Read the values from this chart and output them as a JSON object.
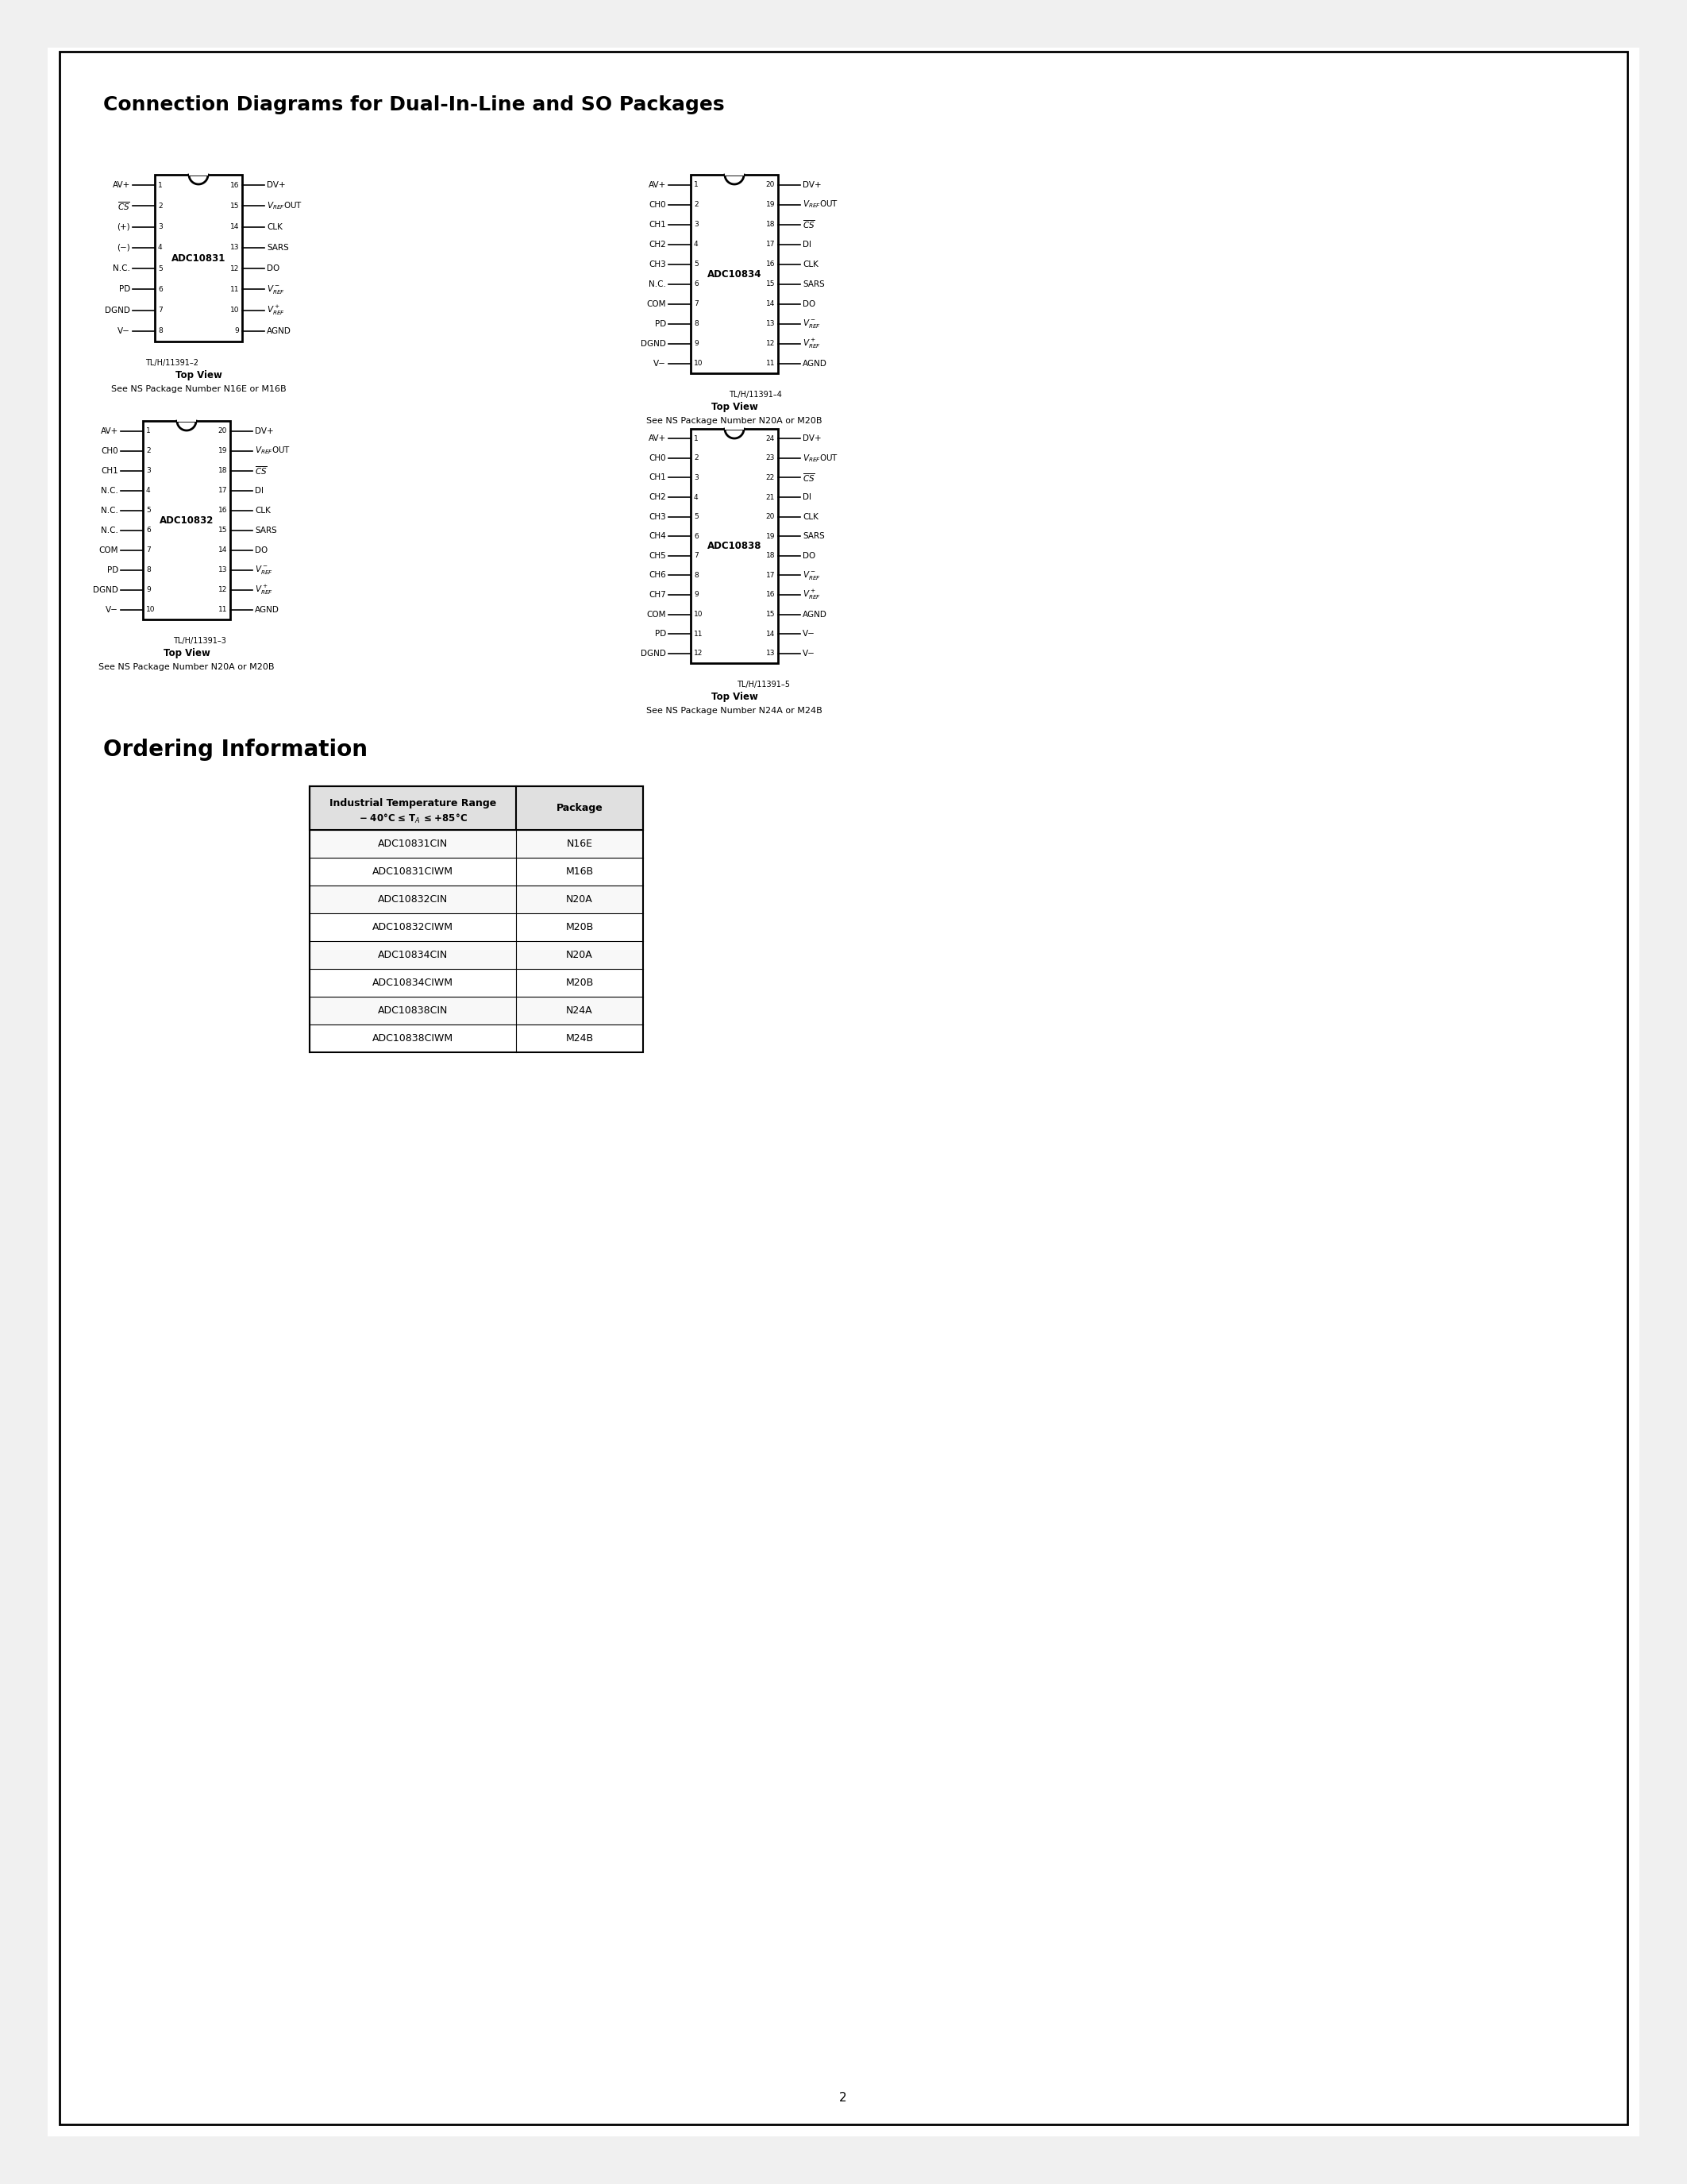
{
  "title": "Connection Diagrams for Dual-In-Line and SO Packages",
  "page_number": "2",
  "bg_color": "#ffffff",
  "box_color": "#000000",
  "ic_10831": {
    "name": "ADC10831",
    "pins_left": [
      "AV+",
      "\\overline{CS}",
      "(+)",
      "(−)",
      "N.C.",
      "PD",
      "DGND",
      "V−"
    ],
    "pins_left_nums": [
      1,
      2,
      3,
      4,
      5,
      6,
      7,
      8
    ],
    "pins_right": [
      "DV+",
      "V_{REF}OUT",
      "CLK",
      "SARS",
      "DO",
      "V_{REF}−",
      "V_{REF}+",
      "AGND"
    ],
    "pins_right_nums": [
      16,
      15,
      14,
      13,
      12,
      11,
      10,
      9
    ],
    "top_view": "Top View",
    "ns_package": "See NS Package Number N16E or M16B",
    "fig_label": "TL/H/11391–2"
  },
  "ic_10832": {
    "name": "ADC10832",
    "pins_left": [
      "AV+",
      "CH0",
      "CH1",
      "N.C.",
      "N.C.",
      "N.C.",
      "COM",
      "PD",
      "DGND",
      "V−"
    ],
    "pins_left_nums": [
      1,
      2,
      3,
      4,
      5,
      6,
      7,
      8,
      9,
      10
    ],
    "pins_right": [
      "DV+",
      "V_{REF}OUT",
      "\\overline{CS}",
      "DI",
      "CLK",
      "SARS",
      "DO",
      "V_{REF}−",
      "V_{REF}+",
      "AGND"
    ],
    "pins_right_nums": [
      20,
      19,
      18,
      17,
      16,
      15,
      14,
      13,
      12,
      11
    ],
    "top_view": "Top View",
    "ns_package": "See NS Package Number N20A or M20B",
    "fig_label": "TL/H/11391–3"
  },
  "ic_10834": {
    "name": "ADC10834",
    "pins_left": [
      "AV+",
      "CH0",
      "CH1",
      "CH2",
      "CH3",
      "N.C.",
      "COM",
      "PD",
      "DGND",
      "V−"
    ],
    "pins_left_nums": [
      1,
      2,
      3,
      4,
      5,
      6,
      7,
      8,
      9,
      10
    ],
    "pins_right": [
      "DV+",
      "V_{REF}OUT",
      "\\overline{CS}",
      "DI",
      "CLK",
      "SARS",
      "DO",
      "V_{REF}−",
      "V_{REF}+",
      "AGND"
    ],
    "pins_right_nums": [
      20,
      19,
      18,
      17,
      16,
      15,
      14,
      13,
      12,
      11
    ],
    "top_view": "Top View",
    "ns_package": "See NS Package Number N20A or M20B",
    "fig_label": "TL/H/11391–4"
  },
  "ic_10838": {
    "name": "ADC10838",
    "pins_left": [
      "AV+",
      "CH0",
      "CH1",
      "CH2",
      "CH3",
      "CH4",
      "CH5",
      "CH6",
      "CH7",
      "COM",
      "PD",
      "DGND"
    ],
    "pins_left_nums": [
      1,
      2,
      3,
      4,
      5,
      6,
      7,
      8,
      9,
      10,
      11,
      12
    ],
    "pins_right": [
      "DV+",
      "V_{REF}OUT",
      "\\overline{CS}",
      "DI",
      "CLK",
      "SARS",
      "DO",
      "V_{REF}−",
      "V_{REF}+",
      "AGND",
      "V−",
      "V−"
    ],
    "pins_right_nums": [
      24,
      23,
      22,
      21,
      20,
      19,
      18,
      17,
      16,
      15,
      14,
      13
    ],
    "top_view": "Top View",
    "ns_package": "See NS Package Number N24A or M24B",
    "fig_label": "TL/H/11391–5"
  },
  "ordering_table": {
    "title_col1": "Industrial Temperature Range",
    "title_col1b": "-40°C ≤ T_A ≤ +85°C",
    "title_col2": "Package",
    "rows": [
      [
        "ADC10831CIN",
        "N16E"
      ],
      [
        "ADC10831CIWM",
        "M16B"
      ],
      [
        "ADC10832CIN",
        "N20A"
      ],
      [
        "ADC10832CIWM",
        "M20B"
      ],
      [
        "ADC10834CIN",
        "N20A"
      ],
      [
        "ADC10834CIWM",
        "M20B"
      ],
      [
        "ADC10838CIN",
        "N24A"
      ],
      [
        "ADC10838CIWM",
        "M24B"
      ]
    ]
  }
}
